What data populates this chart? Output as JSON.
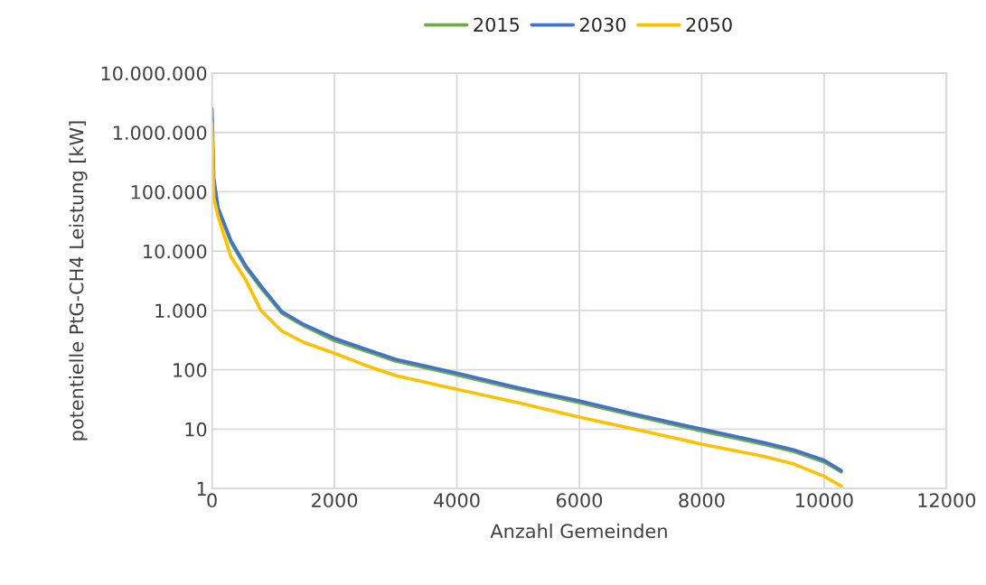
{
  "chart_data": {
    "type": "line",
    "xlabel": "Anzahl Gemeinden",
    "ylabel": "potentielle PtG-CH4 Leistung [kW]",
    "log": "y",
    "grid": true,
    "legend": "top",
    "marker": "none",
    "line_style": "solid",
    "xlim": [
      0,
      12000
    ],
    "xticks": [
      0,
      2000,
      4000,
      6000,
      8000,
      10000,
      12000
    ],
    "ylim": [
      1,
      10000000
    ],
    "yticks": [
      1,
      10,
      100,
      {
        "value": 1000,
        "label": "1.000"
      },
      {
        "value": 10000,
        "label": "10.000"
      },
      {
        "value": 100000,
        "label": "100.000"
      },
      {
        "value": 1000000,
        "label": "1.000.000"
      },
      {
        "value": 10000000,
        "label": "10.000.000"
      }
    ],
    "series": [
      {
        "name": "2015",
        "color": "#70ad47",
        "x": [
          100,
          310,
          550,
          800,
          1140,
          1500,
          2000,
          2500,
          3000,
          4000,
          5000,
          6000,
          7000,
          8000,
          9000,
          9500,
          10000,
          10280
        ],
        "values": [
          50000,
          14000,
          5300,
          2400,
          900,
          550,
          310,
          210,
          140,
          82,
          47,
          28,
          16,
          9.3,
          5.6,
          4.2,
          2.8,
          1.9
        ]
      },
      {
        "name": "2030",
        "color": "#4472c4",
        "x": [
          0,
          30,
          100,
          310,
          550,
          800,
          1140,
          1500,
          2000,
          2500,
          3000,
          4000,
          5000,
          6000,
          7000,
          8000,
          9000,
          9500,
          10000,
          10280
        ],
        "values": [
          2500000,
          170000,
          54000,
          15000,
          5700,
          2600,
          960,
          580,
          340,
          225,
          150,
          88,
          50,
          30,
          17,
          10,
          6,
          4.5,
          3,
          2
        ]
      },
      {
        "name": "2050",
        "color": "#ffc000",
        "x": [
          0,
          30,
          100,
          310,
          550,
          800,
          1140,
          1500,
          2000,
          2500,
          3000,
          4000,
          5000,
          6000,
          7000,
          8000,
          9000,
          9500,
          10000,
          10280
        ],
        "values": [
          1400000,
          80000,
          38000,
          8000,
          3300,
          1000,
          450,
          290,
          190,
          120,
          80,
          47,
          28,
          16,
          9.5,
          5.6,
          3.5,
          2.6,
          1.6,
          1.1
        ]
      }
    ]
  }
}
